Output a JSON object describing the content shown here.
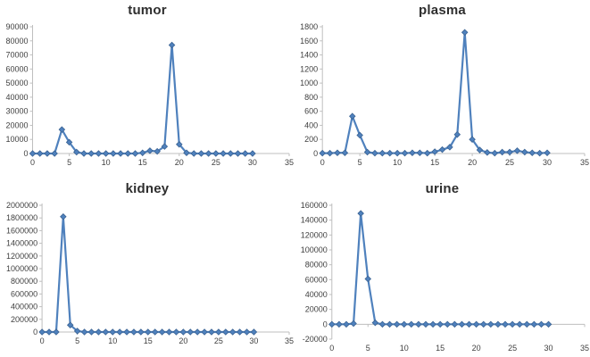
{
  "page": {
    "background": "#ffffff"
  },
  "colors": {
    "series_line": "#4f81bd",
    "marker_fill": "#4f81bd",
    "marker_edge": "#3a6292",
    "axis_line": "#bfbfbf",
    "tick_label": "#3f3f3f",
    "title": "#2e2e2e"
  },
  "chart_data": [
    {
      "type": "line",
      "title": "tumor",
      "xlabel": "",
      "ylabel": "",
      "legend": "none",
      "grid": false,
      "marker": "diamond",
      "xlim": [
        0,
        35
      ],
      "xstep": 5,
      "ylim": [
        0,
        90000
      ],
      "ystep": 10000,
      "x": [
        0,
        1,
        2,
        3,
        4,
        5,
        6,
        7,
        8,
        9,
        10,
        11,
        12,
        13,
        14,
        15,
        16,
        17,
        18,
        19,
        20,
        21,
        22,
        23,
        24,
        25,
        26,
        27,
        28,
        29,
        30
      ],
      "values": [
        0,
        0,
        0,
        0,
        17000,
        8000,
        1000,
        0,
        0,
        0,
        0,
        0,
        0,
        0,
        0,
        500,
        2000,
        1500,
        5000,
        77000,
        6500,
        500,
        0,
        0,
        0,
        0,
        0,
        0,
        0,
        0,
        0
      ]
    },
    {
      "type": "line",
      "title": "plasma",
      "xlabel": "",
      "ylabel": "",
      "legend": "none",
      "grid": false,
      "marker": "diamond",
      "xlim": [
        0,
        35
      ],
      "xstep": 5,
      "ylim": [
        0,
        1800
      ],
      "ystep": 200,
      "x": [
        0,
        1,
        2,
        3,
        4,
        5,
        6,
        7,
        8,
        9,
        10,
        11,
        12,
        13,
        14,
        15,
        16,
        17,
        18,
        19,
        20,
        21,
        22,
        23,
        24,
        25,
        26,
        27,
        28,
        29,
        30
      ],
      "values": [
        5,
        5,
        10,
        10,
        530,
        260,
        20,
        5,
        5,
        5,
        5,
        5,
        10,
        10,
        5,
        25,
        55,
        90,
        270,
        1720,
        200,
        50,
        15,
        5,
        20,
        20,
        40,
        20,
        10,
        5,
        10
      ]
    },
    {
      "type": "line",
      "title": "kidney",
      "xlabel": "",
      "ylabel": "",
      "legend": "none",
      "grid": false,
      "marker": "diamond",
      "xlim": [
        0,
        35
      ],
      "xstep": 5,
      "ylim": [
        0,
        2000000
      ],
      "ystep": 200000,
      "x": [
        0,
        1,
        2,
        3,
        4,
        5,
        6,
        7,
        8,
        9,
        10,
        11,
        12,
        13,
        14,
        15,
        16,
        17,
        18,
        19,
        20,
        21,
        22,
        23,
        24,
        25,
        26,
        27,
        28,
        29,
        30
      ],
      "values": [
        0,
        0,
        0,
        1820000,
        110000,
        15000,
        0,
        0,
        0,
        0,
        0,
        0,
        0,
        0,
        0,
        0,
        0,
        0,
        0,
        0,
        0,
        0,
        0,
        0,
        0,
        0,
        0,
        0,
        0,
        0,
        0
      ]
    },
    {
      "type": "line",
      "title": "urine",
      "xlabel": "",
      "ylabel": "",
      "legend": "none",
      "grid": false,
      "marker": "diamond",
      "xlim": [
        0,
        35
      ],
      "xstep": 5,
      "ylim": [
        -20000,
        160000
      ],
      "ystep": 20000,
      "x": [
        0,
        1,
        2,
        3,
        4,
        5,
        6,
        7,
        8,
        9,
        10,
        11,
        12,
        13,
        14,
        15,
        16,
        17,
        18,
        19,
        20,
        21,
        22,
        23,
        24,
        25,
        26,
        27,
        28,
        29,
        30
      ],
      "values": [
        0,
        0,
        0,
        1000,
        149000,
        61000,
        2000,
        0,
        0,
        0,
        0,
        0,
        0,
        0,
        0,
        0,
        0,
        0,
        0,
        0,
        0,
        0,
        0,
        0,
        0,
        0,
        0,
        0,
        0,
        0,
        0
      ]
    }
  ]
}
